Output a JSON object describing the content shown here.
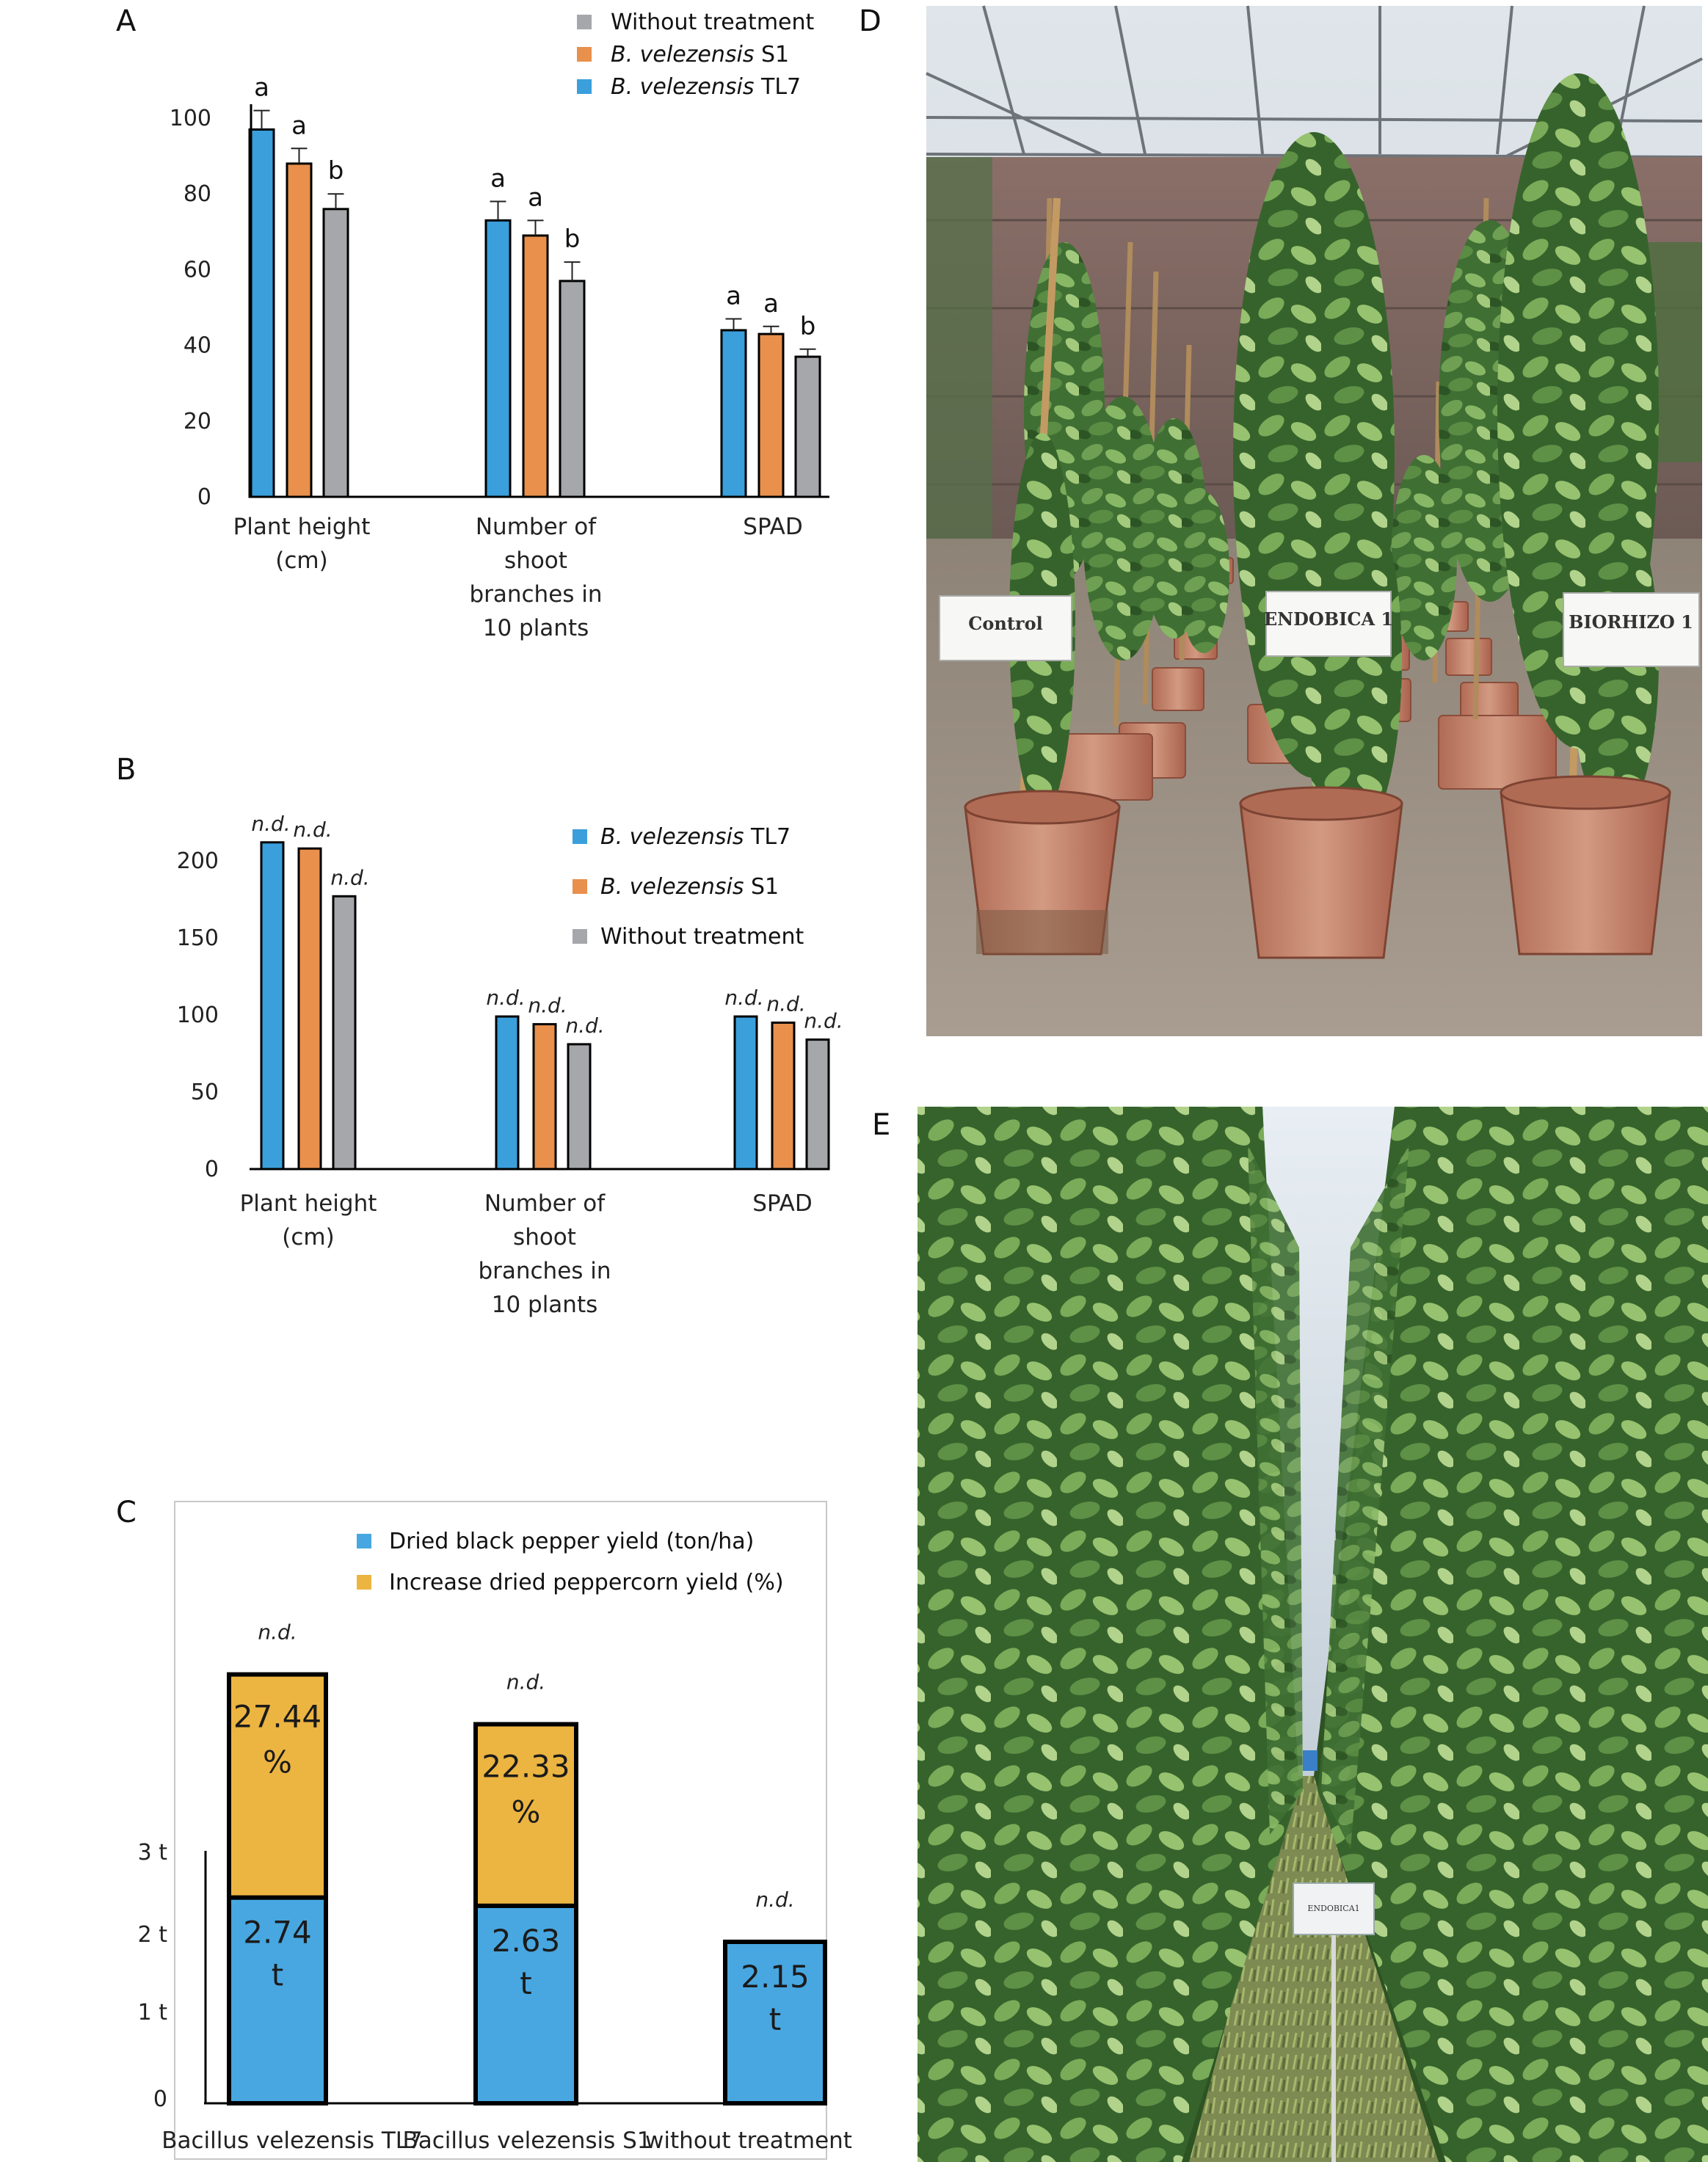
{
  "colors": {
    "tl7": "#3a9fdb",
    "s1": "#e8904c",
    "without": "#a5a7ab",
    "yield": "#48a7e0",
    "increase": "#ecb541",
    "axis": "#000000"
  },
  "panels": {
    "A": {
      "label": "A"
    },
    "B": {
      "label": "B"
    },
    "C": {
      "label": "C"
    },
    "D": {
      "label": "D",
      "signs": [
        "Control",
        "ENDOBICA 1",
        "BIORHIZO 1"
      ]
    },
    "E": {
      "label": "E",
      "sign": "ENDOBICA1"
    }
  },
  "chart_data": [
    {
      "panel": "A",
      "type": "bar",
      "categories": [
        [
          "Plant height",
          "(cm)"
        ],
        [
          "Number of",
          "shoot",
          "branches in",
          "10 plants"
        ],
        [
          "SPAD"
        ]
      ],
      "series": [
        {
          "name_prefix": "B. velezensis",
          "name_suffix": " TL7",
          "key": "tl7",
          "values": [
            97,
            73,
            44
          ],
          "errors": [
            5,
            5,
            3
          ],
          "letters": [
            "a",
            "a",
            "a"
          ]
        },
        {
          "name_prefix": "B. velezensis",
          "name_suffix": " S1",
          "key": "s1",
          "values": [
            88,
            69,
            43
          ],
          "errors": [
            4,
            4,
            2
          ],
          "letters": [
            "a",
            "a",
            "a"
          ]
        },
        {
          "name_prefix": "",
          "name_suffix": "Without treatment",
          "key": "without",
          "values": [
            76,
            57,
            37
          ],
          "errors": [
            4,
            5,
            2
          ],
          "letters": [
            "b",
            "b",
            "b"
          ]
        }
      ],
      "legend_order": [
        "without",
        "s1",
        "tl7"
      ],
      "legend_placement": "top-right",
      "yticks": [
        0,
        20,
        40,
        60,
        80,
        100
      ],
      "ylim": [
        0,
        110
      ]
    },
    {
      "panel": "B",
      "type": "bar",
      "categories": [
        [
          "Plant height",
          "(cm)"
        ],
        [
          "Number of",
          "shoot",
          "branches in",
          "10 plants"
        ],
        [
          "SPAD"
        ]
      ],
      "series": [
        {
          "name_prefix": "B. velezensis",
          "name_suffix": " TL7",
          "key": "tl7",
          "values": [
            212,
            99,
            99
          ],
          "labels": [
            "n.d.",
            "n.d.",
            "n.d."
          ]
        },
        {
          "name_prefix": "B. velezensis",
          "name_suffix": " S1",
          "key": "s1",
          "values": [
            208,
            94,
            95
          ],
          "labels": [
            "n.d.",
            "n.d.",
            "n.d."
          ]
        },
        {
          "name_prefix": "",
          "name_suffix": "Without treatment",
          "key": "without",
          "values": [
            177,
            81,
            84
          ],
          "labels": [
            "n.d.",
            "n.d.",
            "n.d."
          ]
        }
      ],
      "legend_order": [
        "tl7",
        "s1",
        "without"
      ],
      "legend_placement": "top-right",
      "yticks": [
        0,
        50,
        100,
        150,
        200
      ],
      "ylim": [
        0,
        225
      ]
    },
    {
      "panel": "C",
      "type": "bar",
      "stacked": true,
      "categories": [
        "Bacillus velezensis TL7",
        "Bacillus velezensis S1",
        "without treatment"
      ],
      "legend": [
        "Dried black pepper yield (ton/ha)",
        "Increase dried peppercorn yield (%)"
      ],
      "legend_placement": "top",
      "yield_t": [
        2.74,
        2.63,
        2.15
      ],
      "increase_pct": [
        27.44,
        22.33,
        null
      ],
      "yield_labels": [
        [
          "2.74",
          "t"
        ],
        [
          "2.63",
          "t"
        ],
        [
          "2.15",
          "t"
        ]
      ],
      "increase_labels": [
        [
          "27.44",
          "%"
        ],
        [
          "22.33",
          "%"
        ],
        null
      ],
      "top_labels": [
        "n.d.",
        "n.d.",
        "n.d."
      ],
      "yticks": [
        "0",
        "1 t",
        "2 t",
        "3 t"
      ],
      "ytick_values": [
        0,
        1,
        2,
        3
      ]
    }
  ]
}
